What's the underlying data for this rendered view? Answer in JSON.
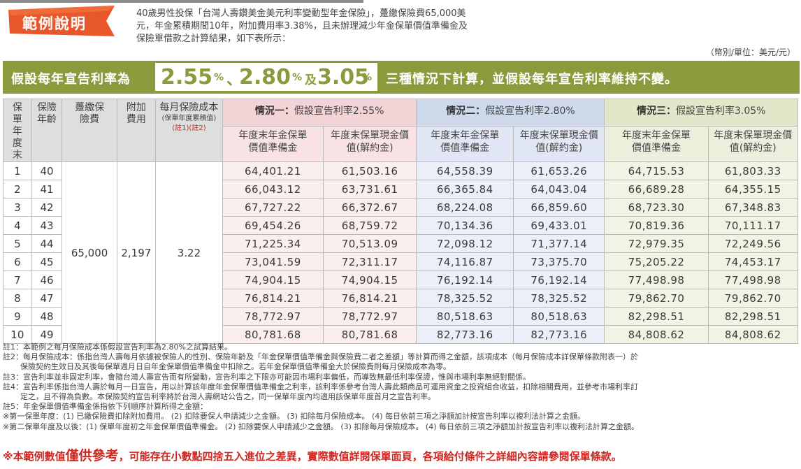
{
  "badge": "範例說明",
  "intro": [
    "40歲男性投保「台灣人壽鑽美金美元利率變動型年金保險」，躉繳保險費65,000美",
    "元，年金累積期間10年，附加費用率3.38%，且未辦理減少年金保單價值準備金及",
    "保險單借款之計算結果，如下表所示："
  ],
  "unit": "（幣別/單位：美元/元）",
  "banner": {
    "prefix": "假設每年宣告利率為",
    "rate1": "2.55",
    "pct1": "%",
    "sep": "、",
    "rate2": "2.80",
    "pct2": "%",
    "and": "及",
    "rate3": "3.05",
    "pct3": "%",
    "suffix": "三種情況下計算，並假設每年宣告利率維持不變。"
  },
  "headers": {
    "year": "保單年度末",
    "age": "保險年齡",
    "premium": "躉繳保險費",
    "fee": "附加費用",
    "cost_main": "每月保險成本",
    "cost_sub": "(保單年度累積值)",
    "cost_note": "(註1)(註2)",
    "s1_label": "情況一：",
    "s1_text": "假設宣告利率2.55%",
    "s2_label": "情況二：",
    "s2_text": "假設宣告利率2.80%",
    "s3_label": "情況三：",
    "s3_text": "假設宣告利率3.05%",
    "reserve": "年度末年金保單價值準備金",
    "surrender": "年度末保單現金價值(解約金)"
  },
  "merged": {
    "premium": "65,000",
    "fee": "2,197",
    "cost": "3.22"
  },
  "rows": [
    {
      "year": "1",
      "age": "40",
      "s1r": "64,401.21",
      "s1c": "61,503.16",
      "s2r": "64,558.39",
      "s2c": "61,653.26",
      "s3r": "64,715.53",
      "s3c": "61,803.33"
    },
    {
      "year": "2",
      "age": "41",
      "s1r": "66,043.12",
      "s1c": "63,731.61",
      "s2r": "66,365.84",
      "s2c": "64,043.04",
      "s3r": "66,689.28",
      "s3c": "64,355.15"
    },
    {
      "year": "3",
      "age": "42",
      "s1r": "67,727.22",
      "s1c": "66,372.67",
      "s2r": "68,224.08",
      "s2c": "66,859.60",
      "s3r": "68,723.30",
      "s3c": "67,348.83"
    },
    {
      "year": "4",
      "age": "43",
      "s1r": "69,454.26",
      "s1c": "68,759.72",
      "s2r": "70,134.36",
      "s2c": "69,433.01",
      "s3r": "70,819.36",
      "s3c": "70,111.17"
    },
    {
      "year": "5",
      "age": "44",
      "s1r": "71,225.34",
      "s1c": "70,513.09",
      "s2r": "72,098.12",
      "s2c": "71,377.14",
      "s3r": "72,979.35",
      "s3c": "72,249.56"
    },
    {
      "year": "6",
      "age": "45",
      "s1r": "73,041.59",
      "s1c": "72,311.17",
      "s2r": "74,116.87",
      "s2c": "73,375.70",
      "s3r": "75,205.22",
      "s3c": "74,453.17"
    },
    {
      "year": "7",
      "age": "46",
      "s1r": "74,904.15",
      "s1c": "74,904.15",
      "s2r": "76,192.14",
      "s2c": "76,192.14",
      "s3r": "77,498.98",
      "s3c": "77,498.98"
    },
    {
      "year": "8",
      "age": "47",
      "s1r": "76,814.21",
      "s1c": "76,814.21",
      "s2r": "78,325.52",
      "s2c": "78,325.52",
      "s3r": "79,862.70",
      "s3c": "79,862.70"
    },
    {
      "year": "9",
      "age": "48",
      "s1r": "78,772.97",
      "s1c": "78,772.97",
      "s2r": "80,518.63",
      "s2c": "80,518.63",
      "s3r": "82,298.51",
      "s3c": "82,298.51"
    },
    {
      "year": "10",
      "age": "49",
      "s1r": "80,781.68",
      "s1c": "80,781.68",
      "s2r": "82,773.16",
      "s2c": "82,773.16",
      "s3r": "84,808.62",
      "s3c": "84,808.62"
    }
  ],
  "notes": [
    "註1：本範例之每月保險成本係假設宣告利率為2.80%之試算結果。",
    "註2：每月保險成本：係指台灣人壽每月依據被保險人的性別、保險年齡及「年金保單價值準備金與保險費二者之差額」等計算而得之金額，該項成本（每月保險成本詳保單條款附表一）於",
    "保險契約生效日及其後每保單週月日自年金保單價值準備金中扣除之。若年金保單價值準備金大於保險費則每月保險成本為零。",
    "註3：宣告利率並非固定利率，會隨台灣人壽宣告而有所變動，宣告利率之下限亦可能因市場利率偏低，而導致無最低利率保證，惟與市場利率無絕對關係。",
    "註4：宣告利率係指台灣人壽於每月一日宣告，用以計算該年度年金保單價值準備金之利率，該利率係參考台灣人壽此類商品可運用資金之投資組合收益，扣除相關費用，並參考市場利率訂",
    "定之，且不得為負數。本保險契約宣告利率將於台灣人壽網站公告之，同一保單年度內均適用該保單年度首月之宣告利率。",
    "註5：年金保單價值準備金係指依下列順序計算所得之金額：",
    "※第一保單年度：(1) 已繳保險費扣除附加費用。 (2) 扣除要保人申請減少之金額。 (3) 扣除每月保險成本。 (4) 每日依前三項之淨額加計按宣告利率以複利法計算之金額。",
    "※第二保單年度及以後：(1) 保單年度初之年金保單價值準備金。 (2) 扣除要保人申請減少之金額。 (3) 扣除每月保險成本。 (4) 每日依前三項之淨額加計按宣告利率以複利法計算之金額。"
  ],
  "final": {
    "a": "※本範例數值",
    "b": "僅供參考",
    "c": "，可能存在小數點四捨五入進位之差異，實際數值詳閱保單面頁，各項給付條件之詳細內容請參閱保單條款。"
  },
  "colors": {
    "banner": "#8b9a3c",
    "badge": "#e8572a",
    "red": "#d0261f"
  }
}
